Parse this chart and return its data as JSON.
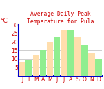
{
  "months": [
    "J",
    "F",
    "M",
    "A",
    "M",
    "J",
    "J",
    "A",
    "S",
    "O",
    "N",
    "D"
  ],
  "values": [
    8,
    9,
    12,
    15,
    20,
    23,
    27,
    27,
    23,
    18,
    13,
    10
  ],
  "bar_color_even": "#FFDEAD",
  "bar_color_odd": "#90EE90",
  "title_line1": "Average Daily Peak",
  "title_line2": "Temperature for Pula",
  "ylabel": "°C",
  "ylim": [
    0,
    30
  ],
  "yticks": [
    5,
    10,
    15,
    20,
    25,
    30
  ],
  "title_color": "#CC0000",
  "axis_color": "#0000CC",
  "tick_color": "#CC0000",
  "grid_color": "#BBBBBB",
  "bg_color": "#FFFFFF",
  "title_fontsize": 5.8,
  "ylabel_fontsize": 6.5,
  "tick_fontsize": 5.5
}
